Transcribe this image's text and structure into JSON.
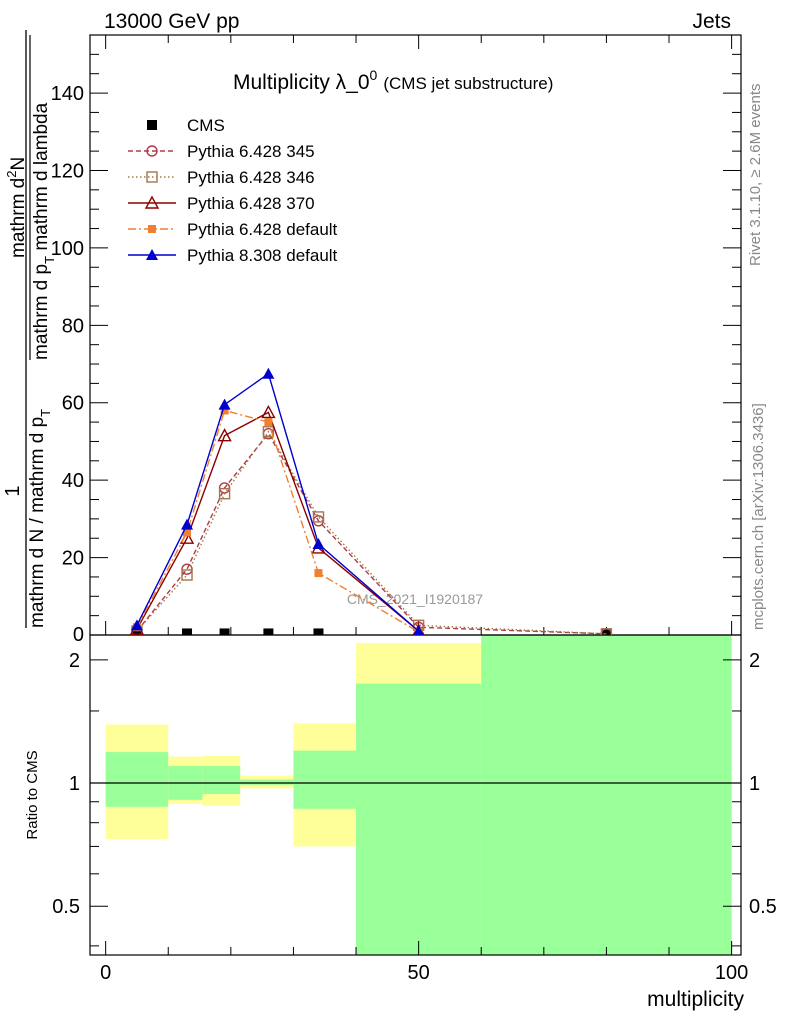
{
  "header": {
    "left": "13000 GeV pp",
    "right": "Jets"
  },
  "side_labels": {
    "rivet": "Rivet 3.1.10, ≥ 2.6M events",
    "mcplots": "mcplots.cern.ch [arXiv:1306.3436]"
  },
  "chart_data": {
    "type": "line",
    "title_main": "Multiplicity λ_0",
    "title_sup": "0",
    "title_note": "(CMS jet substructure)",
    "watermark": "CMS_2021_I1920187",
    "xlabel": "multiplicity",
    "xlim": [
      -2.5,
      101.5
    ],
    "ylim": [
      0,
      155
    ],
    "x_ticks": [
      0,
      50,
      100
    ],
    "y_ticks": [
      20,
      40,
      60,
      80,
      100,
      120,
      140
    ],
    "ylabel_frac_numerator": "1",
    "ylabel_frac_denominator": "mathrm d N / mathrm d p",
    "ylabel_frac_denominator_sub": "T",
    "ylabel_right_line1": "mathrm d",
    "ylabel_right_sup": "2",
    "ylabel_right_line1b": "N",
    "ylabel_right_line2": "mathrm d p",
    "ylabel_right_sub": "T",
    "ylabel_right_line3": " mathrm d lambda",
    "ylabel_axis_zero": "0",
    "series": [
      {
        "name": "CMS",
        "color": "#000000",
        "marker": "square-filled",
        "line": "none",
        "x": [
          5,
          13,
          19,
          26,
          34,
          80
        ],
        "y": [
          0.4,
          0.4,
          0.4,
          0.4,
          0.4,
          0.4
        ]
      },
      {
        "name": "Pythia 6.428 345",
        "color": "#b03a48",
        "marker": "circle-open",
        "line": "dashed",
        "x": [
          5,
          13,
          19,
          26,
          34,
          50,
          80
        ],
        "y": [
          1,
          17,
          38,
          52,
          29.5,
          2,
          0.3
        ]
      },
      {
        "name": "Pythia 6.428 346",
        "color": "#a0784a",
        "marker": "square-open",
        "line": "dotted",
        "x": [
          5,
          13,
          19,
          26,
          34,
          50,
          80
        ],
        "y": [
          1,
          15.5,
          36.5,
          52.5,
          30.5,
          2.5,
          0.3
        ]
      },
      {
        "name": "Pythia 6.428 370",
        "color": "#8b0000",
        "marker": "triangle-open",
        "line": "solid",
        "x": [
          5,
          13,
          19,
          26,
          34,
          50
        ],
        "y": [
          1.5,
          25,
          51.5,
          57.5,
          22.5,
          1
        ]
      },
      {
        "name": "Pythia 6.428 default",
        "color": "#f08030",
        "marker": "square-filled-small",
        "line": "dashdot",
        "x": [
          5,
          13,
          19,
          26,
          34,
          50
        ],
        "y": [
          2,
          26.5,
          58,
          55,
          16,
          0.8
        ]
      },
      {
        "name": "Pythia 8.308 default",
        "color": "#0000cc",
        "marker": "triangle-filled",
        "line": "solid",
        "x": [
          5,
          13,
          19,
          26,
          34,
          50
        ],
        "y": [
          2.5,
          28.5,
          59.5,
          67.5,
          23.5,
          1
        ]
      }
    ],
    "ratio": {
      "ylabel": "Ratio to CMS",
      "y_ticks": [
        0.5,
        1,
        2
      ],
      "y_tick_labels": [
        "0.5",
        "1",
        "2"
      ],
      "ylim": [
        0.38,
        2.3
      ],
      "log": true,
      "bands": [
        {
          "x0": 0,
          "x1": 10,
          "yellow": [
            0.73,
            1.39
          ],
          "green": [
            0.875,
            1.19
          ]
        },
        {
          "x0": 10,
          "x1": 15.5,
          "yellow": [
            0.89,
            1.16
          ],
          "green": [
            0.91,
            1.1
          ]
        },
        {
          "x0": 15.5,
          "x1": 21.5,
          "yellow": [
            0.88,
            1.165
          ],
          "green": [
            0.94,
            1.1
          ]
        },
        {
          "x0": 21.5,
          "x1": 30,
          "yellow": [
            0.97,
            1.04
          ],
          "green": [
            0.99,
            1.02
          ]
        },
        {
          "x0": 30,
          "x1": 40,
          "yellow": [
            0.7,
            1.4
          ],
          "green": [
            0.865,
            1.2
          ]
        },
        {
          "x0": 40,
          "x1": 60,
          "yellow": [
            0.3,
            2.2
          ],
          "green": [
            0.3,
            1.75
          ]
        },
        {
          "x0": 60,
          "x1": 100,
          "yellow": [
            0.3,
            2.5
          ],
          "green": [
            0.3,
            2.5
          ]
        }
      ]
    }
  }
}
